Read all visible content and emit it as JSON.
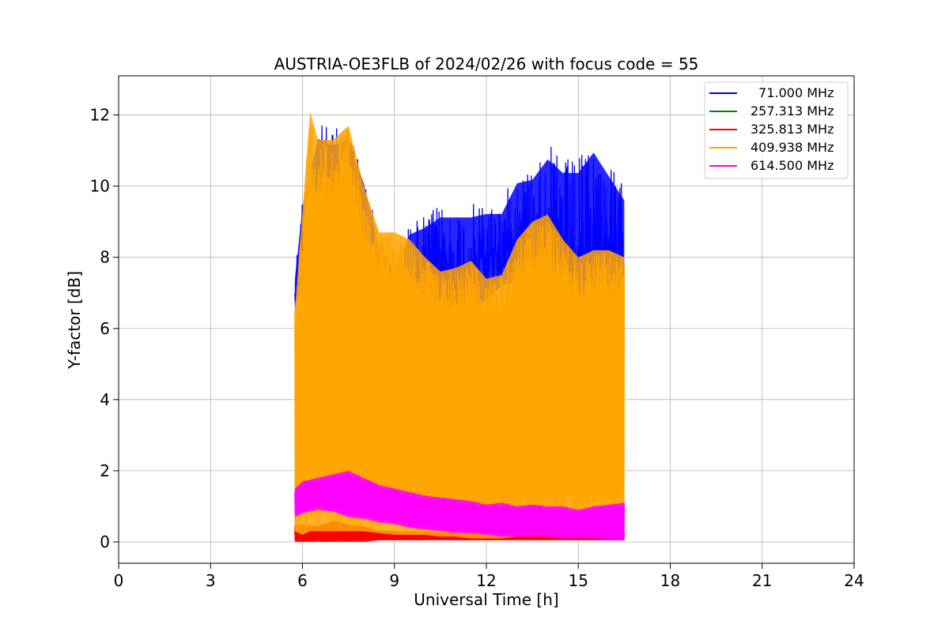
{
  "chart_data": {
    "type": "line",
    "title": "AUSTRIA-OE3FLB of 2024/02/26 with focus code = 55",
    "xlabel": "Universal Time [h]",
    "ylabel": "Y-factor [dB]",
    "xlim": [
      0,
      24
    ],
    "ylim": [
      -0.6,
      13.1
    ],
    "xticks": [
      0,
      3,
      6,
      9,
      12,
      15,
      18,
      21,
      24
    ],
    "yticks": [
      0,
      2,
      4,
      6,
      8,
      10,
      12
    ],
    "xtick_labels": [
      "0",
      "3",
      "6",
      "9",
      "12",
      "15",
      "18",
      "21",
      "24"
    ],
    "ytick_labels": [
      "0",
      "2",
      "4",
      "6",
      "8",
      "10",
      "12"
    ],
    "grid": true,
    "legend_position": "top-right",
    "series": [
      {
        "name": "  71.000 MHz",
        "color": "#0000ff",
        "band": {
          "x": [
            5.75,
            6.0,
            6.5,
            7.0,
            7.5,
            8.0,
            8.5,
            9.0,
            9.5,
            10.0,
            10.5,
            11.0,
            11.5,
            12.0,
            12.5,
            13.0,
            13.5,
            14.0,
            14.5,
            15.0,
            15.5,
            16.0,
            16.5
          ],
          "high": [
            7.7,
            9.8,
            11.8,
            11.6,
            11.8,
            10.5,
            8.6,
            7.9,
            9.0,
            9.2,
            9.5,
            9.5,
            9.5,
            9.6,
            9.6,
            10.5,
            10.6,
            11.2,
            10.8,
            10.8,
            11.4,
            10.7,
            10.0
          ],
          "low": [
            0.1,
            0.3,
            0.4,
            0.4,
            0.3,
            0.2,
            0.2,
            0.2,
            0.2,
            0.2,
            0.2,
            0.15,
            0.15,
            0.1,
            0.1,
            0.1,
            0.1,
            0.15,
            0.15,
            0.2,
            0.2,
            0.2,
            0.3
          ],
          "low_envelope": [
            6.5,
            7.5,
            9.5,
            9.5,
            9.0,
            7.5,
            6.5,
            6.4,
            6.6,
            6.8,
            6.8,
            5.5,
            6.5,
            6.8,
            7.2,
            7.3,
            7.6,
            7.5,
            6.6,
            5.5,
            6.5,
            6.6,
            6.5
          ]
        }
      },
      {
        "name": "257.313 MHz",
        "color": "#008000",
        "band": {
          "x": [
            5.75,
            7.0,
            8.0,
            9.0,
            10.0,
            11.0,
            12.0,
            13.0,
            14.0,
            15.0,
            16.0,
            16.5
          ],
          "high": [
            0.35,
            0.4,
            0.35,
            0.3,
            0.3,
            0.25,
            0.25,
            0.25,
            0.25,
            0.3,
            0.3,
            0.3
          ],
          "low": [
            0.05,
            0.05,
            0.05,
            0.05,
            0.05,
            0.05,
            0.05,
            0.05,
            0.05,
            0.05,
            0.05,
            0.05
          ]
        }
      },
      {
        "name": "325.813 MHz",
        "color": "#ff0000",
        "band": {
          "x": [
            5.75,
            6.5,
            7.0,
            7.5,
            8.0,
            8.5,
            9.0,
            10.0,
            11.0,
            12.0,
            13.0,
            14.0,
            15.0,
            16.0,
            16.5
          ],
          "high": [
            0.5,
            0.45,
            0.6,
            0.5,
            0.45,
            0.3,
            0.3,
            0.3,
            0.25,
            0.25,
            0.25,
            0.3,
            0.35,
            0.3,
            0.3
          ],
          "low": [
            0.0,
            0.0,
            0.0,
            0.0,
            0.0,
            0.05,
            0.05,
            0.05,
            0.05,
            0.05,
            0.05,
            0.05,
            0.05,
            0.05,
            0.05
          ]
        }
      },
      {
        "name": "409.938 MHz",
        "color": "#ffa500",
        "band": {
          "x": [
            5.75,
            6.0,
            6.25,
            6.5,
            7.0,
            7.5,
            8.0,
            8.5,
            9.0,
            9.5,
            10.0,
            10.5,
            11.0,
            11.5,
            12.0,
            12.5,
            13.0,
            13.5,
            14.0,
            14.5,
            15.0,
            15.5,
            16.0,
            16.5
          ],
          "high": [
            6.5,
            9.3,
            12.1,
            11.3,
            11.3,
            11.7,
            10.0,
            8.7,
            8.7,
            8.5,
            8.0,
            7.6,
            7.7,
            7.9,
            7.4,
            7.5,
            8.5,
            9.0,
            9.2,
            8.5,
            8.0,
            8.2,
            8.2,
            8.0
          ],
          "low": [
            0.3,
            0.2,
            0.3,
            0.3,
            0.3,
            0.3,
            0.3,
            0.25,
            0.2,
            0.2,
            0.2,
            0.15,
            0.15,
            0.1,
            0.1,
            0.1,
            0.15,
            0.15,
            0.2,
            0.25,
            0.3,
            0.2,
            0.2,
            0.3
          ]
        }
      },
      {
        "name": "614.500 MHz",
        "color": "#ff00ff",
        "band": {
          "x": [
            5.75,
            6.0,
            6.5,
            7.0,
            7.5,
            8.0,
            8.5,
            9.0,
            9.5,
            10.0,
            10.5,
            11.0,
            11.5,
            12.0,
            12.5,
            13.0,
            13.5,
            14.0,
            14.5,
            15.0,
            15.5,
            16.0,
            16.5
          ],
          "high": [
            1.5,
            1.7,
            1.8,
            1.9,
            2.0,
            1.8,
            1.6,
            1.5,
            1.4,
            1.3,
            1.25,
            1.2,
            1.15,
            1.05,
            1.1,
            1.0,
            1.05,
            1.0,
            1.0,
            0.9,
            1.0,
            1.05,
            1.1
          ],
          "low": [
            0.7,
            0.8,
            0.9,
            0.85,
            0.7,
            0.65,
            0.55,
            0.5,
            0.4,
            0.35,
            0.3,
            0.25,
            0.25,
            0.2,
            0.15,
            0.15,
            0.15,
            0.15,
            0.1,
            0.1,
            0.1,
            0.05,
            0.05
          ]
        }
      }
    ]
  }
}
